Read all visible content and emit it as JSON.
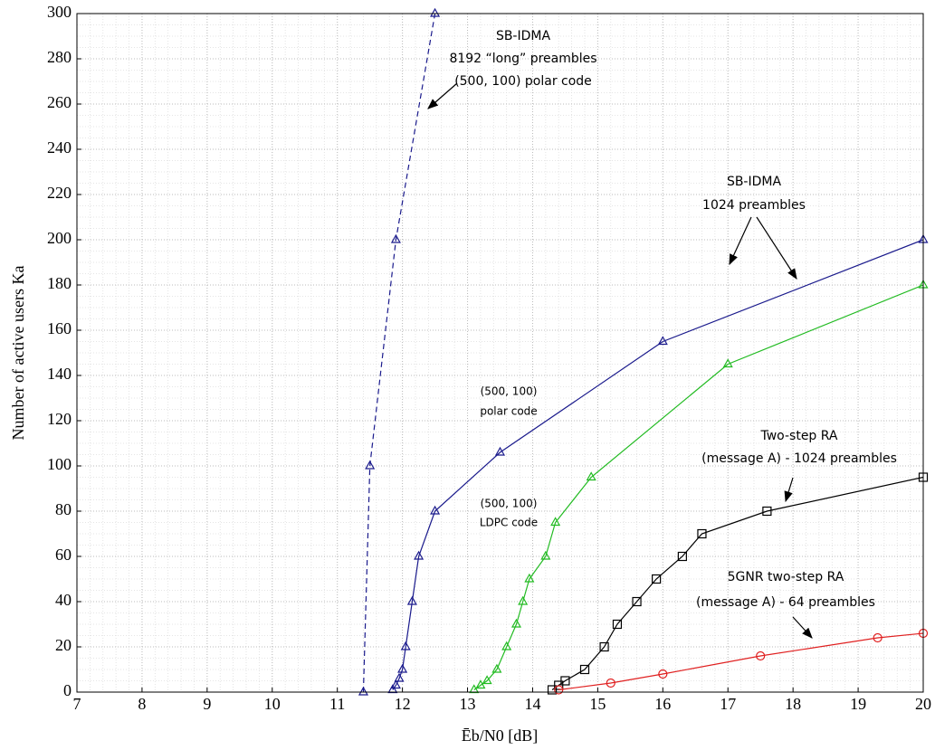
{
  "chart_data": {
    "type": "line",
    "xlabel": "Ēb/N0 [dB]",
    "ylabel": "Number of active users Ka",
    "xlim": [
      7,
      20
    ],
    "xticks": [
      7,
      8,
      9,
      10,
      11,
      12,
      13,
      14,
      15,
      16,
      17,
      18,
      19,
      20
    ],
    "ylim": [
      0,
      300
    ],
    "yticks": [
      0,
      20,
      40,
      60,
      80,
      100,
      120,
      140,
      160,
      180,
      200,
      220,
      240,
      260,
      280,
      300
    ],
    "grid": true,
    "series": [
      {
        "color": "#1a1a8c",
        "marker": "triangle",
        "dashed": true,
        "x": [
          11.4,
          11.5,
          11.9,
          12.5
        ],
        "values": [
          0,
          100,
          200,
          300
        ]
      },
      {
        "color": "#1a1a8c",
        "marker": "triangle",
        "dashed": false,
        "x": [
          11.85,
          11.9,
          11.95,
          12.0,
          12.05,
          12.15,
          12.25,
          12.5,
          13.5,
          16,
          20
        ],
        "values": [
          1,
          3,
          6,
          10,
          20,
          40,
          60,
          80,
          106,
          155,
          200
        ]
      },
      {
        "color": "#22bb22",
        "marker": "triangle",
        "dashed": false,
        "x": [
          13.1,
          13.2,
          13.3,
          13.45,
          13.6,
          13.75,
          13.85,
          13.95,
          14.2,
          14.35,
          14.9,
          17,
          20
        ],
        "values": [
          1,
          3,
          5,
          10,
          20,
          30,
          40,
          50,
          60,
          75,
          95,
          145,
          180
        ]
      },
      {
        "color": "#000000",
        "marker": "square",
        "dashed": false,
        "x": [
          14.3,
          14.4,
          14.5,
          14.8,
          15.1,
          15.3,
          15.6,
          15.9,
          16.3,
          16.6,
          17.6,
          20
        ],
        "values": [
          1,
          3,
          5,
          10,
          20,
          30,
          40,
          50,
          60,
          70,
          80,
          95
        ]
      },
      {
        "color": "#e02020",
        "marker": "circle",
        "dashed": false,
        "x": [
          14.4,
          15.2,
          16,
          17.5,
          19.3,
          20
        ],
        "values": [
          1,
          4,
          8,
          16,
          24,
          26
        ]
      }
    ],
    "annotations": [
      {
        "lines": [
          "SB-IDMA",
          "8192 “long” preambles",
          "(500, 100) polar code"
        ]
      },
      {
        "lines": [
          "SB-IDMA",
          "1024 preambles"
        ]
      },
      {
        "lines": [
          "(500, 100)",
          "polar code"
        ]
      },
      {
        "lines": [
          "(500, 100)",
          "LDPC code"
        ]
      },
      {
        "lines": [
          "Two-step RA",
          "(message A) - 1024 preambles"
        ]
      },
      {
        "lines": [
          "5GNR two-step RA",
          "(message A) - 64 preambles"
        ]
      }
    ]
  }
}
